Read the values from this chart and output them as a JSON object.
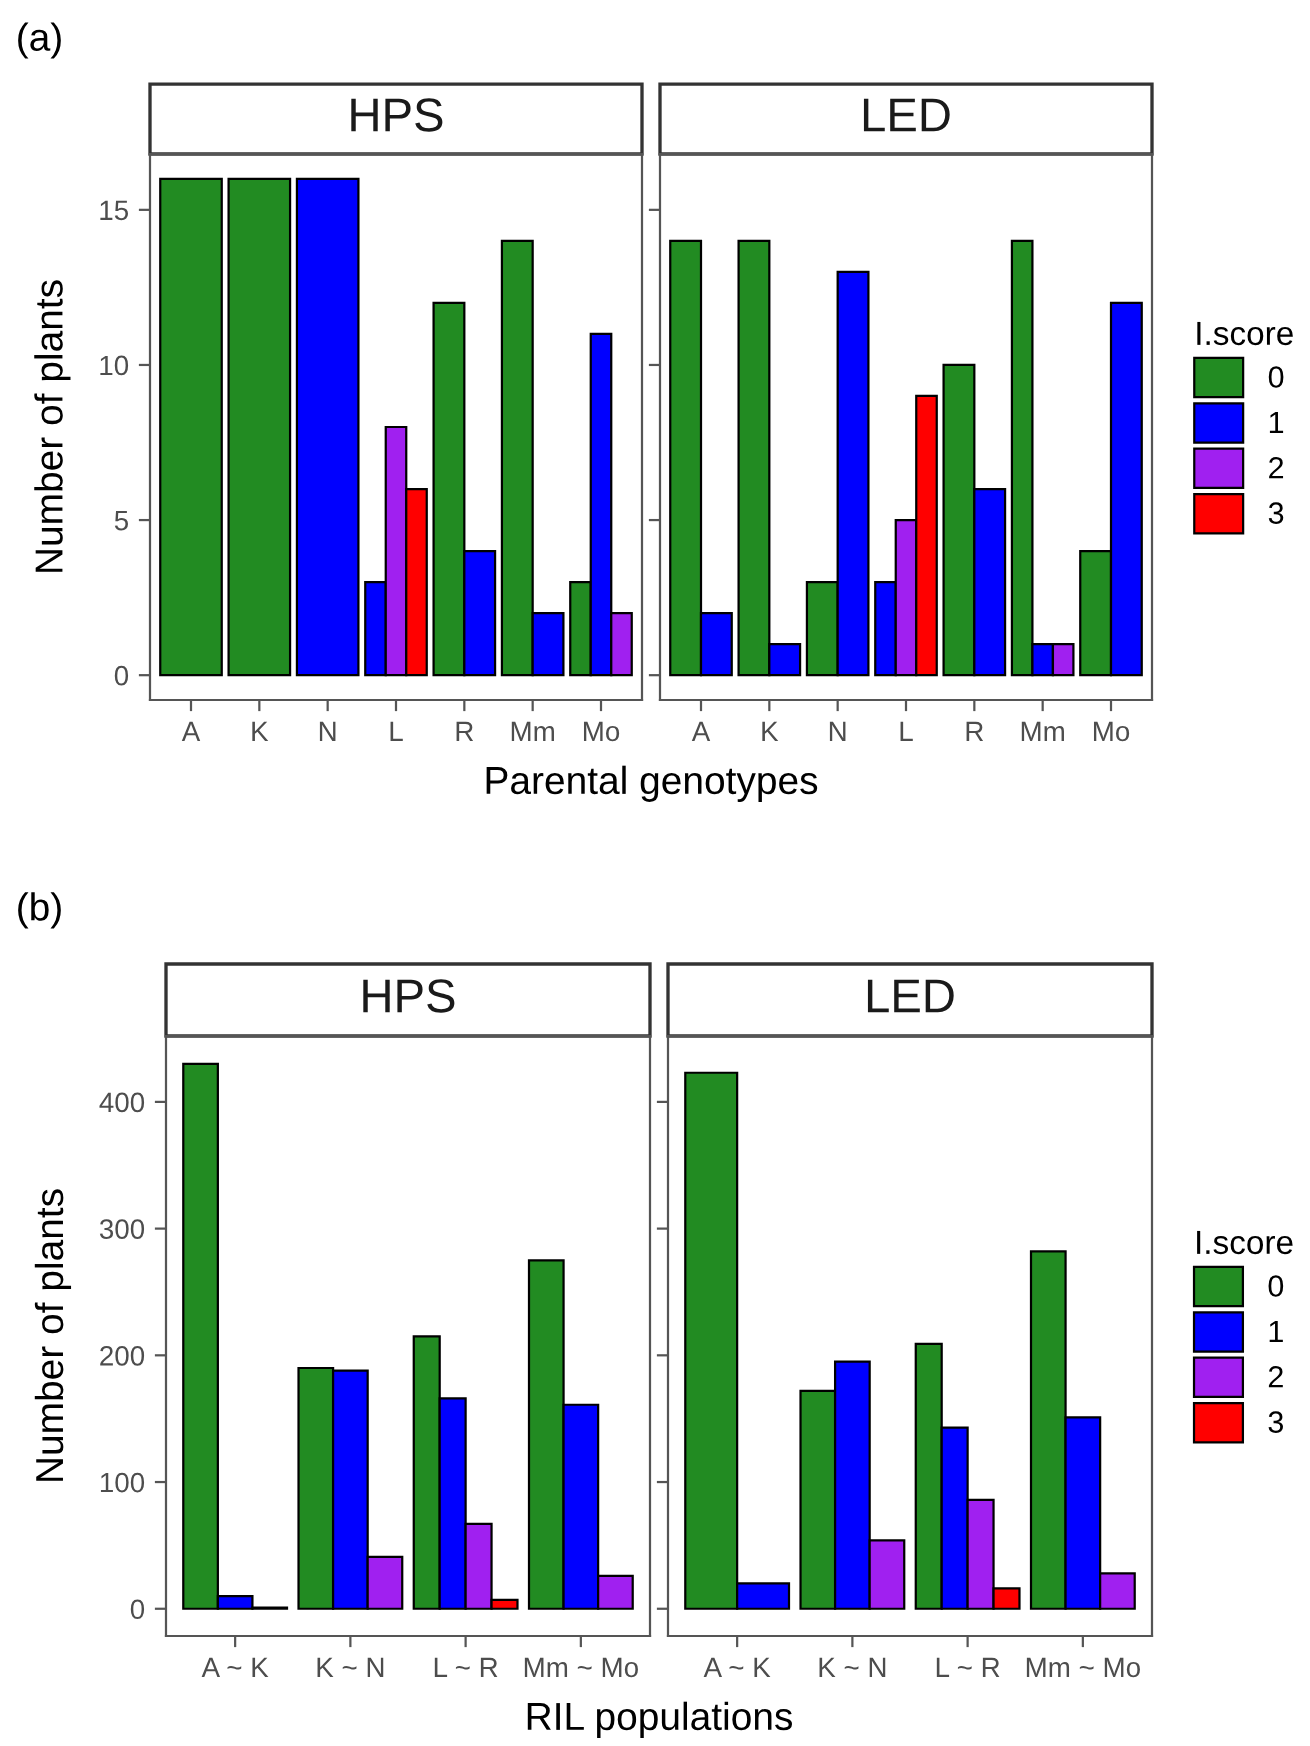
{
  "chart_data": [
    {
      "type": "bar",
      "title": "HPS",
      "xlabel": "Parental genotypes",
      "ylabel": "Number of plants",
      "annotations": [
        "(a)"
      ],
      "categories": [
        "A",
        "K",
        "N",
        "L",
        "R",
        "Mm",
        "Mo"
      ],
      "ylim": [
        -0.8,
        16.8
      ],
      "yticks": [
        0,
        5,
        10,
        15
      ],
      "grid": false,
      "legend": false,
      "series": [
        {
          "color": "#228b22",
          "values": [
            16,
            16,
            null,
            null,
            12,
            14,
            3
          ]
        },
        {
          "color": "#0000ff",
          "values": [
            null,
            null,
            16,
            3,
            4,
            2,
            11
          ]
        },
        {
          "color": "#a020f0",
          "values": [
            null,
            null,
            null,
            8,
            null,
            null,
            2
          ]
        },
        {
          "color": "#ff0000",
          "values": [
            null,
            null,
            null,
            6,
            null,
            null,
            null
          ]
        }
      ]
    },
    {
      "type": "bar",
      "title": "LED",
      "legend_title": "I.score",
      "legend": "right",
      "tick_labels": "x",
      "categories": [
        "A",
        "K",
        "N",
        "L",
        "R",
        "Mm",
        "Mo"
      ],
      "ylim": [
        -0.8,
        16.8
      ],
      "yticks": [
        0,
        5,
        10,
        15
      ],
      "grid": false,
      "series": [
        {
          "name": "0",
          "color": "#228b22",
          "values": [
            14,
            14,
            3,
            null,
            10,
            14,
            4
          ]
        },
        {
          "name": "1",
          "color": "#0000ff",
          "values": [
            2,
            1,
            13,
            3,
            6,
            1,
            12
          ]
        },
        {
          "name": "2",
          "color": "#a020f0",
          "values": [
            null,
            null,
            null,
            5,
            null,
            1,
            null
          ]
        },
        {
          "name": "3",
          "color": "#ff0000",
          "values": [
            null,
            null,
            null,
            9,
            null,
            null,
            null
          ]
        }
      ]
    },
    {
      "type": "bar",
      "title": "HPS",
      "xlabel": "RIL populations",
      "ylabel": "Number of plants",
      "annotations": [
        "(b)"
      ],
      "categories": [
        "A ~ K",
        "K ~ N",
        "L ~ R",
        "Mm ~ Mo"
      ],
      "ylim": [
        -21.5,
        452
      ],
      "yticks": [
        0,
        100,
        200,
        300,
        400
      ],
      "grid": false,
      "legend": false,
      "series": [
        {
          "color": "#228b22",
          "values": [
            430,
            190,
            215,
            275
          ]
        },
        {
          "color": "#0000ff",
          "values": [
            10,
            188,
            166,
            161
          ]
        },
        {
          "color": "#a020f0",
          "values": [
            1,
            41,
            67,
            26
          ]
        },
        {
          "color": "#ff0000",
          "values": [
            null,
            null,
            7,
            null
          ]
        }
      ]
    },
    {
      "type": "bar",
      "title": "LED",
      "legend_title": "I.score",
      "legend": "right",
      "tick_labels": "x",
      "categories": [
        "A ~ K",
        "K ~ N",
        "L ~ R",
        "Mm ~ Mo"
      ],
      "ylim": [
        -21.5,
        452
      ],
      "yticks": [
        0,
        100,
        200,
        300,
        400
      ],
      "grid": false,
      "series": [
        {
          "name": "0",
          "color": "#228b22",
          "values": [
            423,
            172,
            209,
            282
          ]
        },
        {
          "name": "1",
          "color": "#0000ff",
          "values": [
            20,
            195,
            143,
            151
          ]
        },
        {
          "name": "2",
          "color": "#a020f0",
          "values": [
            null,
            54,
            86,
            28
          ]
        },
        {
          "name": "3",
          "color": "#ff0000",
          "values": [
            null,
            null,
            16,
            null
          ]
        }
      ]
    }
  ]
}
